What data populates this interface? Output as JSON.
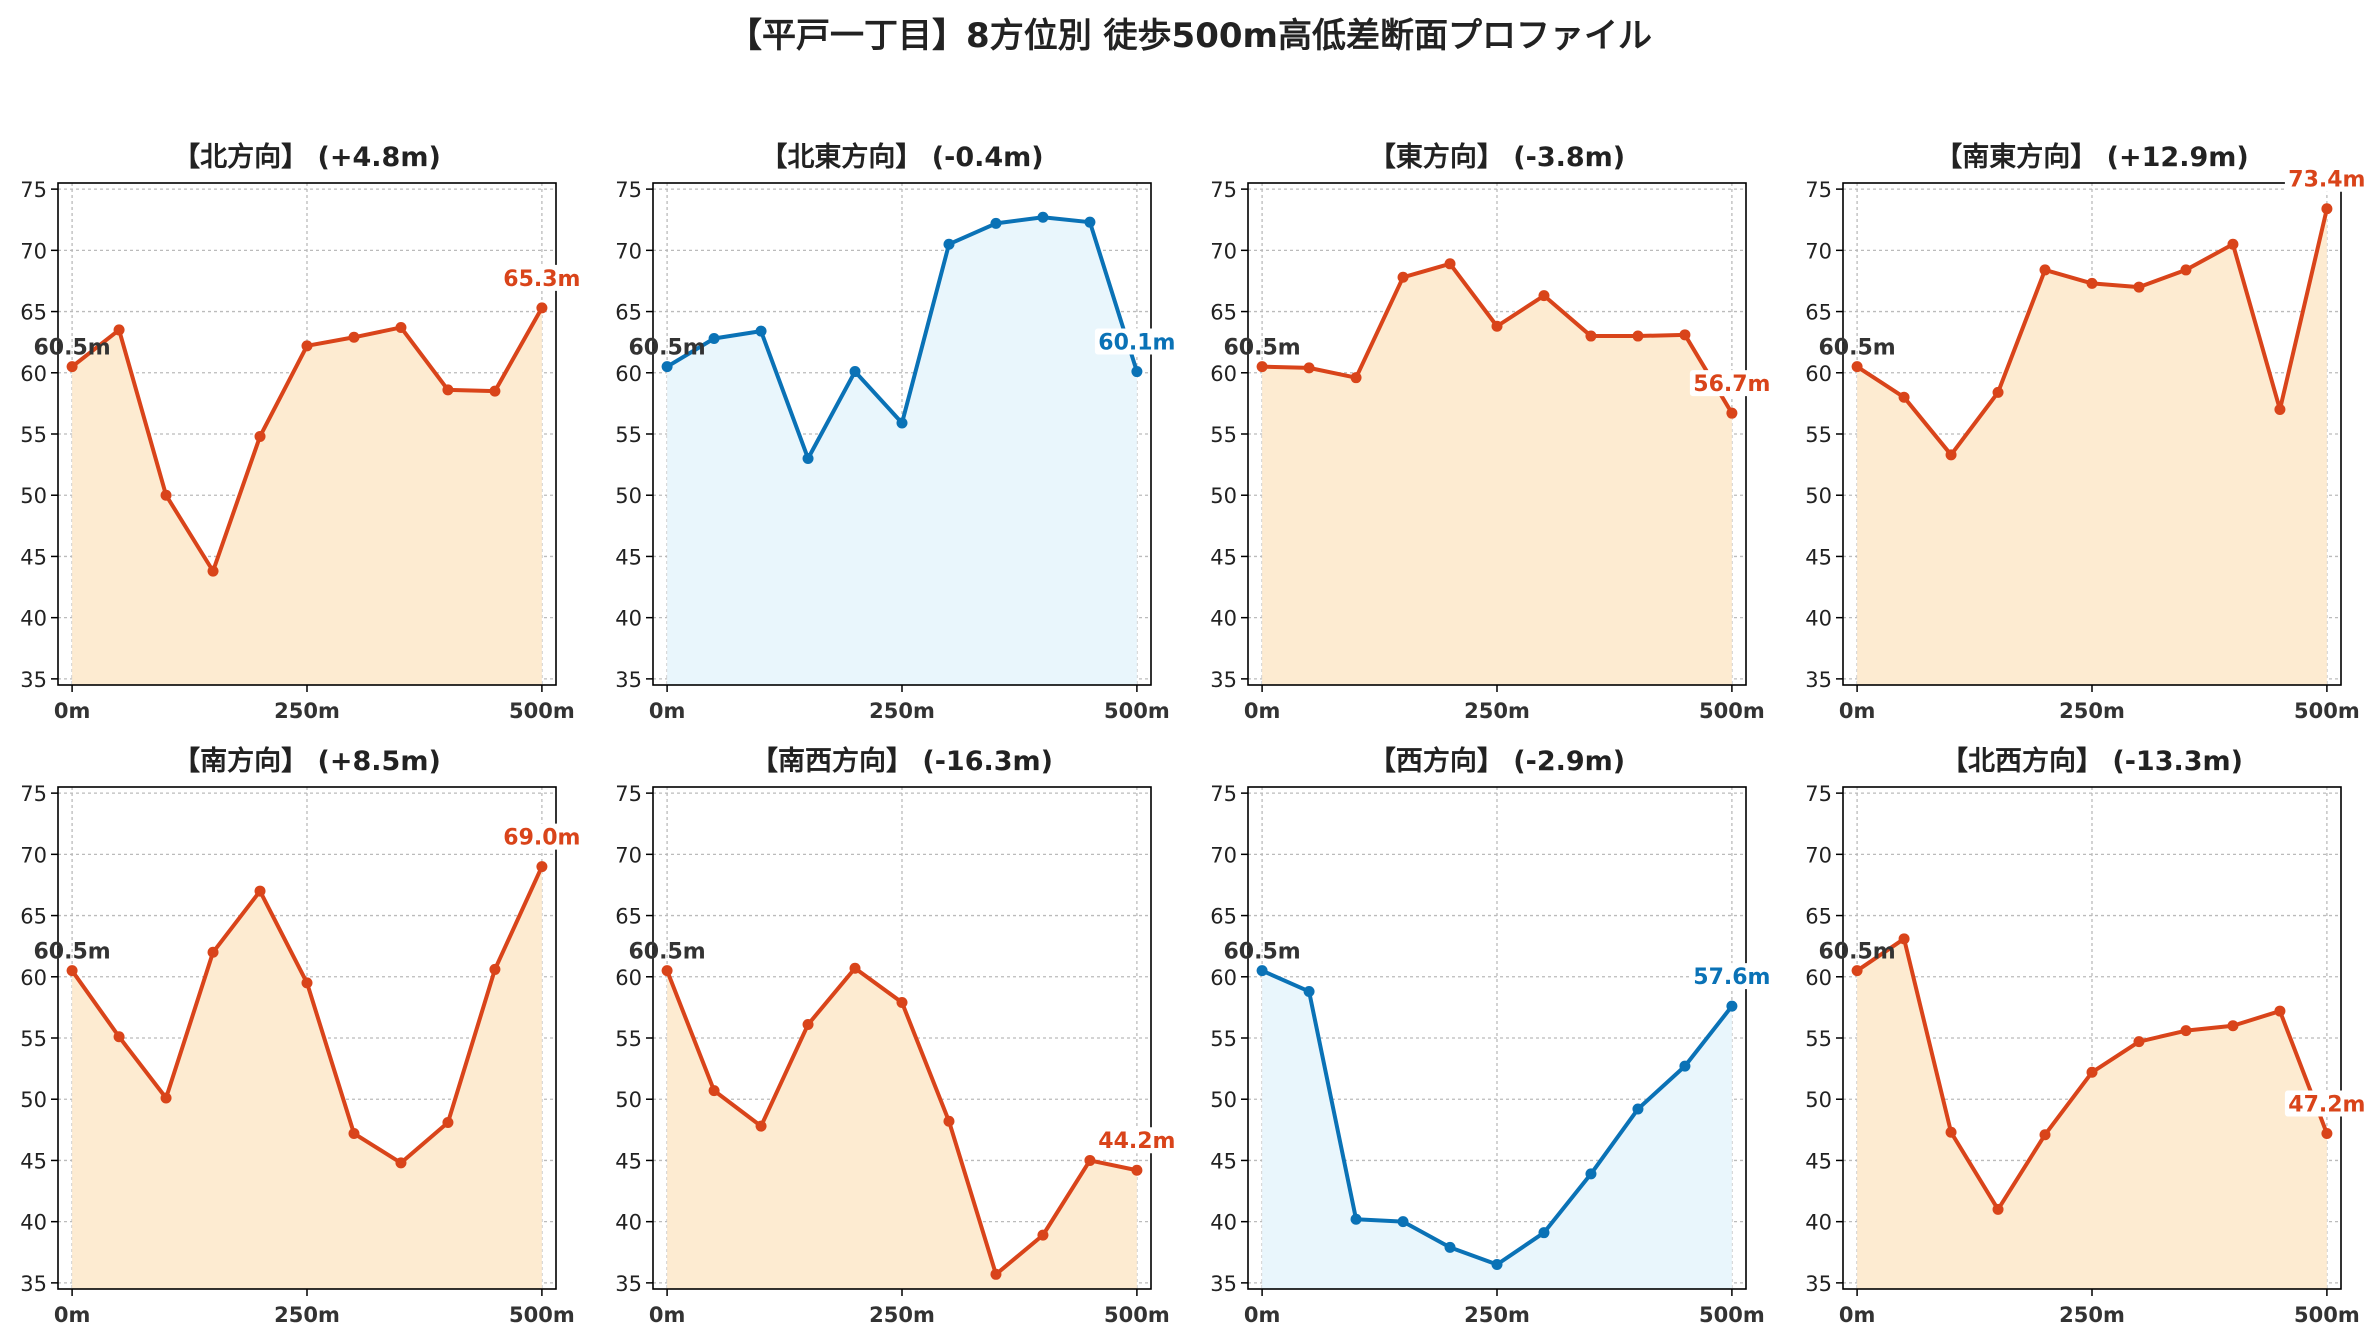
{
  "title": "【平戸一丁目】8方位別 徒歩500m高低差断面プロファイル",
  "colors": {
    "up_line": "#d9441a",
    "up_fill": "#fdebd1",
    "down_line": "#0a72b6",
    "down_fill": "#e9f6fc",
    "start_label": "#333333",
    "axis": "#000000",
    "grid": "#bbbbbb"
  },
  "chart_data": [
    {
      "type": "line",
      "title": "【北方向】 (+4.8m)",
      "color": "up",
      "x": [
        0,
        50,
        100,
        150,
        200,
        250,
        300,
        350,
        400,
        450,
        500
      ],
      "y": [
        60.5,
        63.5,
        50.0,
        43.8,
        54.8,
        62.2,
        62.9,
        63.7,
        58.6,
        58.5,
        65.3
      ],
      "start_label": "60.5m",
      "end_label": "65.3m",
      "xticks": [
        "0m",
        "250m",
        "500m"
      ],
      "yticks": [
        "35",
        "40",
        "45",
        "50",
        "55",
        "60",
        "65",
        "70",
        "75"
      ],
      "xlim": [
        -15,
        515
      ],
      "ylim": [
        34.5,
        75.5
      ],
      "grid": true
    },
    {
      "type": "line",
      "title": "【北東方向】 (-0.4m)",
      "color": "down",
      "x": [
        0,
        50,
        100,
        150,
        200,
        250,
        300,
        350,
        400,
        450,
        500
      ],
      "y": [
        60.5,
        62.8,
        63.4,
        53.0,
        60.1,
        55.9,
        70.5,
        72.2,
        72.7,
        72.3,
        60.1
      ],
      "start_label": "60.5m",
      "end_label": "60.1m",
      "xticks": [
        "0m",
        "250m",
        "500m"
      ],
      "yticks": [
        "35",
        "40",
        "45",
        "50",
        "55",
        "60",
        "65",
        "70",
        "75"
      ],
      "xlim": [
        -15,
        515
      ],
      "ylim": [
        34.5,
        75.5
      ],
      "grid": true
    },
    {
      "type": "line",
      "title": "【東方向】 (-3.8m)",
      "color": "up",
      "x": [
        0,
        50,
        100,
        150,
        200,
        250,
        300,
        350,
        400,
        450,
        500
      ],
      "y": [
        60.5,
        60.4,
        59.6,
        67.8,
        68.9,
        63.8,
        66.3,
        63.0,
        63.0,
        63.1,
        56.7
      ],
      "start_label": "60.5m",
      "end_label": "56.7m",
      "xticks": [
        "0m",
        "250m",
        "500m"
      ],
      "yticks": [
        "35",
        "40",
        "45",
        "50",
        "55",
        "60",
        "65",
        "70",
        "75"
      ],
      "xlim": [
        -15,
        515
      ],
      "ylim": [
        34.5,
        75.5
      ],
      "grid": true
    },
    {
      "type": "line",
      "title": "【南東方向】 (+12.9m)",
      "color": "up",
      "x": [
        0,
        50,
        100,
        150,
        200,
        250,
        300,
        350,
        400,
        450,
        500
      ],
      "y": [
        60.5,
        58.0,
        53.3,
        58.4,
        68.4,
        67.3,
        67.0,
        68.4,
        70.5,
        57.0,
        73.4
      ],
      "start_label": "60.5m",
      "end_label": "73.4m",
      "xticks": [
        "0m",
        "250m",
        "500m"
      ],
      "yticks": [
        "35",
        "40",
        "45",
        "50",
        "55",
        "60",
        "65",
        "70",
        "75"
      ],
      "xlim": [
        -15,
        515
      ],
      "ylim": [
        34.5,
        75.5
      ],
      "grid": true
    },
    {
      "type": "line",
      "title": "【南方向】 (+8.5m)",
      "color": "up",
      "x": [
        0,
        50,
        100,
        150,
        200,
        250,
        300,
        350,
        400,
        450,
        500
      ],
      "y": [
        60.5,
        55.1,
        50.1,
        62.0,
        67.0,
        59.5,
        47.2,
        44.8,
        48.1,
        60.6,
        69.0
      ],
      "start_label": "60.5m",
      "end_label": "69.0m",
      "xticks": [
        "0m",
        "250m",
        "500m"
      ],
      "yticks": [
        "35",
        "40",
        "45",
        "50",
        "55",
        "60",
        "65",
        "70",
        "75"
      ],
      "xlim": [
        -15,
        515
      ],
      "ylim": [
        34.5,
        75.5
      ],
      "grid": true
    },
    {
      "type": "line",
      "title": "【南西方向】 (-16.3m)",
      "color": "up",
      "x": [
        0,
        50,
        100,
        150,
        200,
        250,
        300,
        350,
        400,
        450,
        500
      ],
      "y": [
        60.5,
        50.7,
        47.8,
        56.1,
        60.7,
        57.9,
        48.2,
        35.7,
        38.9,
        45.0,
        44.2
      ],
      "start_label": "60.5m",
      "end_label": "44.2m",
      "xticks": [
        "0m",
        "250m",
        "500m"
      ],
      "yticks": [
        "35",
        "40",
        "45",
        "50",
        "55",
        "60",
        "65",
        "70",
        "75"
      ],
      "xlim": [
        -15,
        515
      ],
      "ylim": [
        34.5,
        75.5
      ],
      "grid": true
    },
    {
      "type": "line",
      "title": "【西方向】 (-2.9m)",
      "color": "down",
      "x": [
        0,
        50,
        100,
        150,
        200,
        250,
        300,
        350,
        400,
        450,
        500
      ],
      "y": [
        60.5,
        58.8,
        40.2,
        40.0,
        37.9,
        36.5,
        39.1,
        43.9,
        49.2,
        52.7,
        57.6
      ],
      "start_label": "60.5m",
      "end_label": "57.6m",
      "xticks": [
        "0m",
        "250m",
        "500m"
      ],
      "yticks": [
        "35",
        "40",
        "45",
        "50",
        "55",
        "60",
        "65",
        "70",
        "75"
      ],
      "xlim": [
        -15,
        515
      ],
      "ylim": [
        34.5,
        75.5
      ],
      "grid": true
    },
    {
      "type": "line",
      "title": "【北西方向】 (-13.3m)",
      "color": "up",
      "x": [
        0,
        50,
        100,
        150,
        200,
        250,
        300,
        350,
        400,
        450,
        500
      ],
      "y": [
        60.5,
        63.1,
        47.3,
        41.0,
        47.1,
        52.2,
        54.7,
        55.6,
        56.0,
        57.2,
        47.2
      ],
      "start_label": "60.5m",
      "end_label": "47.2m",
      "xticks": [
        "0m",
        "250m",
        "500m"
      ],
      "yticks": [
        "35",
        "40",
        "45",
        "50",
        "55",
        "60",
        "65",
        "70",
        "75"
      ],
      "xlim": [
        -15,
        515
      ],
      "ylim": [
        34.5,
        75.5
      ],
      "grid": true
    }
  ]
}
